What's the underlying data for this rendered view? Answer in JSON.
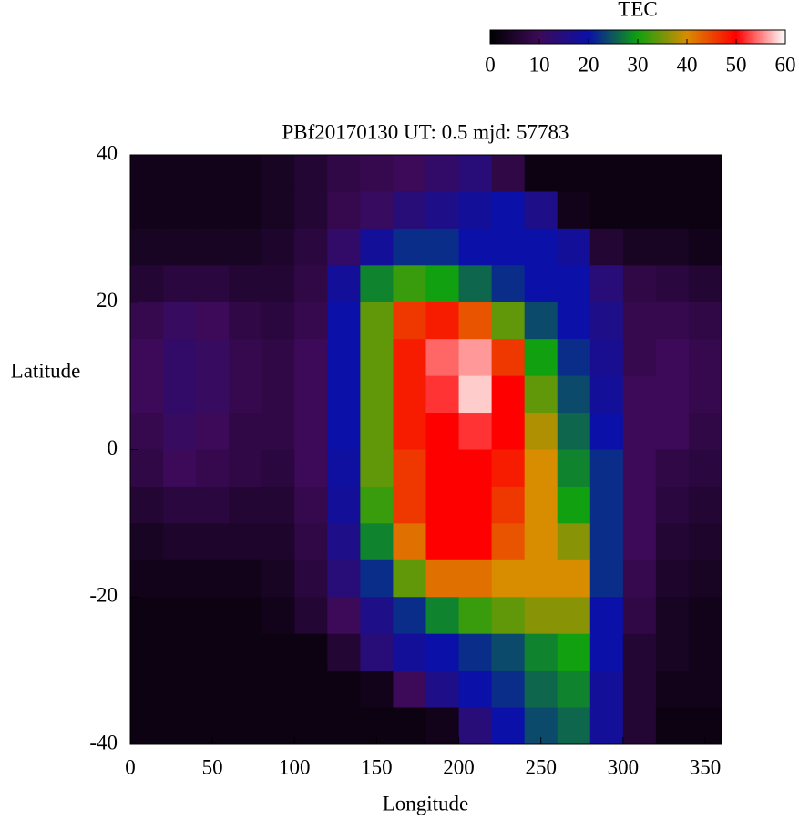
{
  "chart_data": {
    "type": "heatmap",
    "title": "PBf20170130  UT: 0.5  mjd: 57783",
    "x_label": "Longitude",
    "y_label": "Latitude",
    "colorbar_label": "TEC",
    "x": [
      10,
      30,
      50,
      70,
      90,
      110,
      130,
      150,
      170,
      190,
      210,
      230,
      250,
      270,
      290,
      310,
      330,
      350
    ],
    "y": [
      37.5,
      32.5,
      27.5,
      22.5,
      17.5,
      12.5,
      7.5,
      2.5,
      -2.5,
      -7.5,
      -12.5,
      -17.5,
      -22.5,
      -27.5,
      -32.5,
      -37.5
    ],
    "values": [
      [
        3,
        3,
        3,
        3,
        4,
        6,
        8,
        9,
        10,
        12,
        14,
        8,
        2,
        2,
        2,
        2,
        2,
        2
      ],
      [
        3,
        3,
        3,
        3,
        4,
        6,
        9,
        11,
        14,
        16,
        18,
        20,
        16,
        3,
        2,
        2,
        2,
        2
      ],
      [
        4,
        4,
        4,
        4,
        5,
        7,
        12,
        18,
        22,
        22,
        20,
        20,
        20,
        18,
        6,
        4,
        4,
        3
      ],
      [
        6,
        7,
        7,
        6,
        6,
        8,
        18,
        28,
        32,
        30,
        26,
        22,
        20,
        20,
        14,
        8,
        7,
        6
      ],
      [
        9,
        11,
        10,
        8,
        7,
        9,
        20,
        34,
        46,
        48,
        44,
        34,
        24,
        20,
        16,
        9,
        9,
        8
      ],
      [
        10,
        12,
        11,
        9,
        8,
        10,
        20,
        34,
        48,
        54,
        56,
        46,
        30,
        22,
        17,
        9,
        10,
        9
      ],
      [
        10,
        12,
        11,
        9,
        8,
        10,
        20,
        34,
        48,
        52,
        58,
        50,
        34,
        24,
        18,
        10,
        10,
        9
      ],
      [
        9,
        11,
        10,
        8,
        8,
        10,
        20,
        34,
        48,
        50,
        52,
        50,
        38,
        26,
        20,
        10,
        10,
        8
      ],
      [
        8,
        10,
        9,
        8,
        7,
        10,
        19,
        34,
        46,
        50,
        50,
        48,
        40,
        28,
        22,
        10,
        8,
        7
      ],
      [
        6,
        7,
        7,
        6,
        6,
        9,
        18,
        32,
        46,
        50,
        50,
        46,
        40,
        30,
        22,
        10,
        7,
        6
      ],
      [
        4,
        5,
        5,
        5,
        5,
        8,
        16,
        28,
        42,
        50,
        50,
        44,
        40,
        36,
        22,
        10,
        6,
        5
      ],
      [
        3,
        3,
        3,
        3,
        4,
        7,
        14,
        22,
        34,
        42,
        42,
        40,
        40,
        40,
        22,
        9,
        5,
        4
      ],
      [
        2,
        2,
        2,
        2,
        3,
        6,
        10,
        16,
        22,
        28,
        32,
        34,
        36,
        36,
        20,
        8,
        4,
        3
      ],
      [
        2,
        2,
        2,
        2,
        2,
        2,
        6,
        14,
        18,
        20,
        22,
        24,
        28,
        30,
        20,
        6,
        4,
        3
      ],
      [
        2,
        2,
        2,
        2,
        2,
        2,
        2,
        3,
        10,
        16,
        20,
        22,
        26,
        28,
        18,
        6,
        3,
        3
      ],
      [
        2,
        2,
        2,
        2,
        2,
        2,
        2,
        2,
        2,
        3,
        14,
        20,
        24,
        26,
        18,
        6,
        2,
        2
      ]
    ],
    "xlim": [
      0,
      360
    ],
    "xticks": [
      0,
      50,
      100,
      150,
      200,
      250,
      300,
      350
    ],
    "ylim": [
      -40,
      40
    ],
    "yticks": [
      -40,
      -20,
      0,
      20,
      40
    ],
    "zlim": [
      0,
      60
    ],
    "zticks": [
      0,
      10,
      20,
      30,
      40,
      50,
      60
    ],
    "colors": [
      "#000000",
      "#3c0a58",
      "#0a10a8",
      "#10a010",
      "#d88c00",
      "#ff0000",
      "#ffffff"
    ]
  }
}
